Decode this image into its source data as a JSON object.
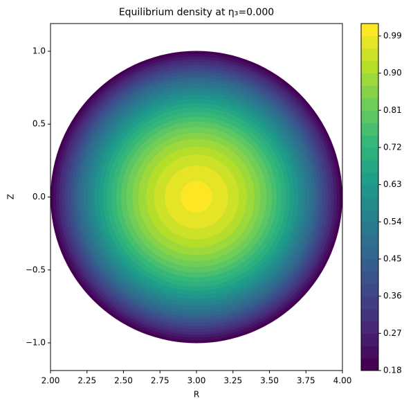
{
  "chart_data": {
    "type": "contourf",
    "title": "Equilibrium density at η₃=0.000",
    "x_label": "R",
    "y_label": "Z",
    "center": [
      3,
      0
    ],
    "r": [
      0,
      0.1,
      0.2,
      0.3,
      0.4,
      0.5,
      0.6,
      0.7,
      0.8,
      0.9,
      1.0
    ],
    "values": [
      1.0,
      0.992,
      0.967,
      0.926,
      0.869,
      0.795,
      0.705,
      0.598,
      0.475,
      0.336,
      0.18
    ],
    "levels": [
      0.18,
      0.21,
      0.24,
      0.27,
      0.3,
      0.33,
      0.36,
      0.39,
      0.42,
      0.45,
      0.48,
      0.51,
      0.54,
      0.57,
      0.6,
      0.63,
      0.66,
      0.69,
      0.72,
      0.75,
      0.78,
      0.81,
      0.84,
      0.87,
      0.9,
      0.93,
      0.96,
      0.99,
      1.02
    ],
    "colormap": [
      "#440154",
      "#482878",
      "#3e4989",
      "#31688e",
      "#26828e",
      "#1f9e89",
      "#35b779",
      "#6ece58",
      "#b5de2b",
      "#fde725"
    ],
    "xlim": [
      2,
      4
    ],
    "ylim": [
      -1.19,
      1.19
    ],
    "xticks": [
      {
        "value": 2,
        "label": "2.00"
      },
      {
        "value": 2.25,
        "label": "2.25"
      },
      {
        "value": 2.5,
        "label": "2.50"
      },
      {
        "value": 2.75,
        "label": "2.75"
      },
      {
        "value": 3,
        "label": "3.00"
      },
      {
        "value": 3.25,
        "label": "3.25"
      },
      {
        "value": 3.5,
        "label": "3.50"
      },
      {
        "value": 3.75,
        "label": "3.75"
      },
      {
        "value": 4,
        "label": "4.00"
      }
    ],
    "yticks": [
      {
        "value": -1,
        "label": "−1.0"
      },
      {
        "value": -0.5,
        "label": "−0.5"
      },
      {
        "value": 0,
        "label": "0.0"
      },
      {
        "value": 0.5,
        "label": "0.5"
      },
      {
        "value": 1,
        "label": "1.0"
      }
    ],
    "cbar_lim": [
      0.18,
      1.02
    ],
    "cbar_ticks": [
      0.18,
      0.27,
      0.36,
      0.45,
      0.54,
      0.63,
      0.72,
      0.81,
      {
        "value": 0.9,
        "label": "0.90"
      },
      0.99
    ]
  }
}
